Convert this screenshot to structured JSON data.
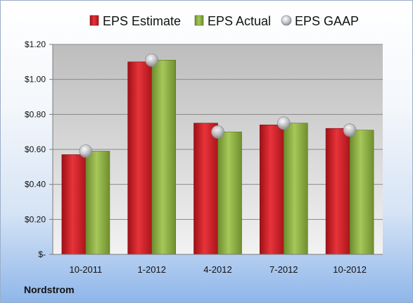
{
  "company": "Nordstrom",
  "colors": {
    "estimate": "#cc1f25",
    "actual": "#8db042",
    "gaap": "#c0c4cc"
  },
  "chart_data": {
    "type": "bar",
    "categories": [
      "10-2011",
      "1-2012",
      "4-2012",
      "7-2012",
      "10-2012"
    ],
    "series": [
      {
        "name": "EPS Estimate",
        "type": "bar",
        "values": [
          0.57,
          1.1,
          0.75,
          0.74,
          0.72
        ]
      },
      {
        "name": "EPS Actual",
        "type": "bar",
        "values": [
          0.59,
          1.11,
          0.7,
          0.75,
          0.71
        ]
      },
      {
        "name": "EPS GAAP",
        "type": "scatter",
        "values": [
          0.59,
          1.11,
          0.7,
          0.75,
          0.71
        ]
      }
    ],
    "ylim": [
      0,
      1.2
    ],
    "yticks": [
      0,
      0.2,
      0.4,
      0.6,
      0.8,
      1.0,
      1.2
    ],
    "ytick_labels": [
      "$-",
      "$0.20",
      "$0.40",
      "$0.60",
      "$0.80",
      "$1.00",
      "$1.20"
    ],
    "grid": true,
    "legend_position": "top"
  }
}
